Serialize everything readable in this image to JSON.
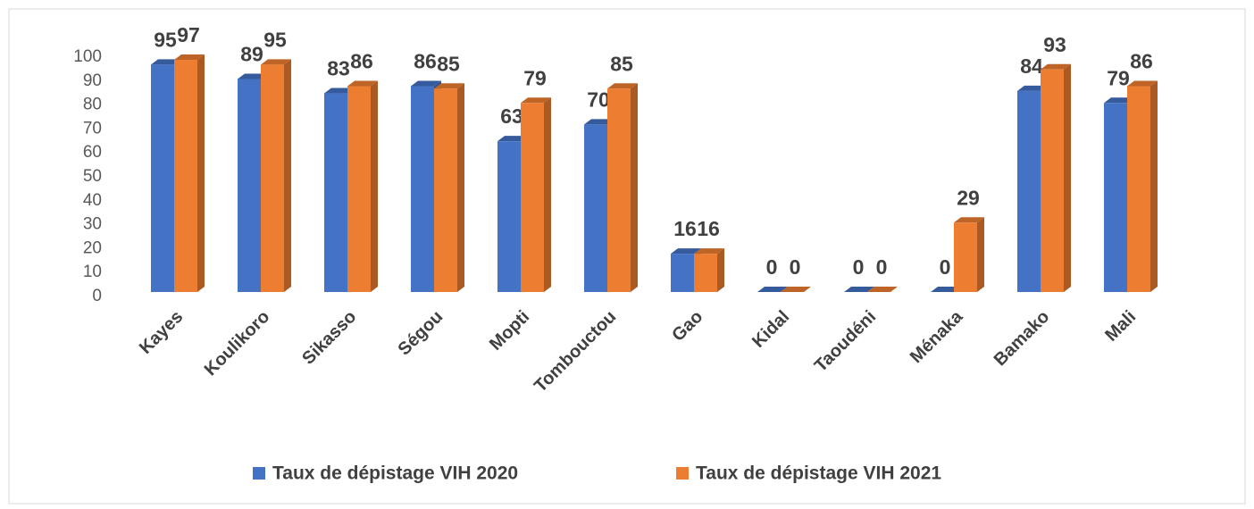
{
  "chart_data": {
    "type": "bar3d",
    "categories": [
      "Kayes",
      "Koulikoro",
      "Sikasso",
      "Ségou",
      "Mopti",
      "Tombouctou",
      "Gao",
      "Kidal",
      "Taoudéni",
      "Ménaka",
      "Bamako",
      "Mali"
    ],
    "series": [
      {
        "name": "Taux de dépistage VIH 2020",
        "color": "#4472c4",
        "values": [
          95,
          89,
          83,
          86,
          63,
          70,
          16,
          0,
          0,
          0,
          84,
          79
        ]
      },
      {
        "name": "Taux de dépistage VIH 2021",
        "color": "#ed7d31",
        "values": [
          97,
          95,
          86,
          85,
          79,
          85,
          16,
          0,
          0,
          29,
          93,
          86
        ]
      }
    ],
    "ylim": [
      0,
      100
    ],
    "yticks": [
      0,
      10,
      20,
      30,
      40,
      50,
      60,
      70,
      80,
      90,
      100
    ],
    "legend": "bottom",
    "grid": false
  }
}
